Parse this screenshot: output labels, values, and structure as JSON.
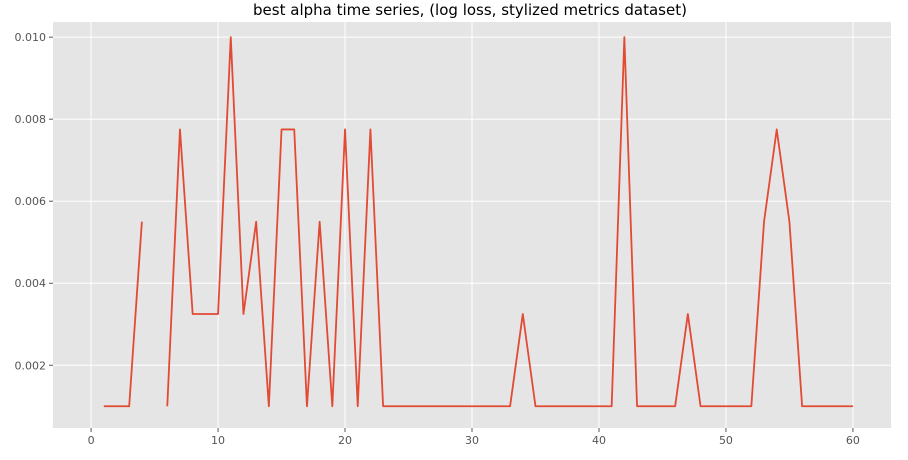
{
  "chart_data": {
    "type": "line",
    "title": "best alpha time series, (log loss, stylized metrics dataset)",
    "xlabel": "",
    "ylabel": "",
    "xlim": [
      -3,
      63
    ],
    "ylim": [
      0.00047,
      0.01037
    ],
    "x_ticks": [
      0,
      10,
      20,
      30,
      40,
      50,
      60
    ],
    "y_ticks": [
      0.002,
      0.004,
      0.006,
      0.008,
      0.01
    ],
    "y_tick_labels": [
      "0.002",
      "0.004",
      "0.006",
      "0.008",
      "0.010"
    ],
    "grid": true,
    "line_color": "#E24A33",
    "segments": [
      {
        "x": [
          1,
          2,
          3,
          4
        ],
        "y": [
          0.001,
          0.001,
          0.001,
          0.0055
        ]
      },
      {
        "x": [
          6,
          7,
          8,
          9,
          10,
          11,
          12,
          13,
          14,
          15,
          16,
          17,
          18,
          19,
          20,
          21,
          22,
          23,
          24,
          25,
          26,
          27,
          28,
          29,
          30,
          31,
          32,
          33,
          34,
          35,
          36,
          37,
          38,
          39,
          40,
          41,
          42,
          43,
          44,
          45,
          46,
          47,
          48,
          49,
          50,
          51,
          52,
          53,
          54,
          55,
          56,
          57,
          58,
          59,
          60
        ],
        "y": [
          0.001,
          0.00775,
          0.00325,
          0.00325,
          0.00325,
          0.01,
          0.00325,
          0.0055,
          0.001,
          0.00775,
          0.00775,
          0.001,
          0.0055,
          0.001,
          0.00775,
          0.001,
          0.00775,
          0.001,
          0.001,
          0.001,
          0.001,
          0.001,
          0.001,
          0.001,
          0.001,
          0.001,
          0.001,
          0.001,
          0.00325,
          0.001,
          0.001,
          0.001,
          0.001,
          0.001,
          0.001,
          0.001,
          0.01,
          0.001,
          0.001,
          0.001,
          0.001,
          0.00325,
          0.001,
          0.001,
          0.001,
          0.001,
          0.001,
          0.0055,
          0.00775,
          0.0055,
          0.001,
          0.001,
          0.001,
          0.001,
          0.001
        ]
      }
    ]
  }
}
